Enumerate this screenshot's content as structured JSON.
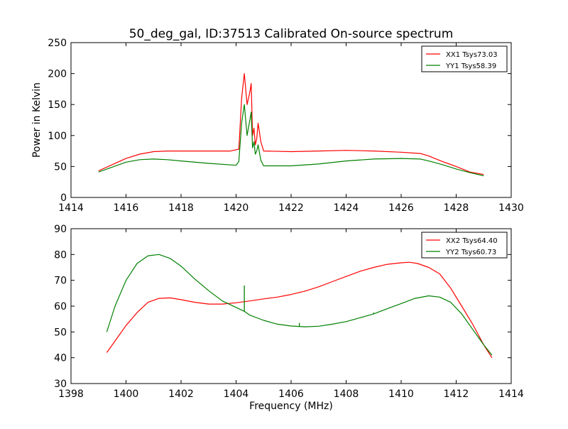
{
  "figure": {
    "title": "50_deg_gal, ID:37513 Calibrated On-source spectrum",
    "ylabel": "Power in Kelvin",
    "xlabel": "Frequency (MHz)"
  },
  "chart_data": [
    {
      "type": "line",
      "title": "50_deg_gal, ID:37513 Calibrated On-source spectrum",
      "ylabel": "Power in Kelvin",
      "xlabel": "",
      "xlim": [
        1414,
        1430
      ],
      "ylim": [
        0,
        250
      ],
      "xticks": [
        1414,
        1416,
        1418,
        1420,
        1422,
        1424,
        1426,
        1428,
        1430
      ],
      "yticks": [
        0,
        50,
        100,
        150,
        200,
        250
      ],
      "grid": false,
      "legend_position": "top-right",
      "series": [
        {
          "name": "XX1 Tsys73.03",
          "color": "#ff0000",
          "x": [
            1415.0,
            1415.5,
            1416.0,
            1416.5,
            1417.0,
            1417.5,
            1418.0,
            1419.0,
            1419.8,
            1420.1,
            1420.2,
            1420.3,
            1420.4,
            1420.5,
            1420.55,
            1420.6,
            1420.65,
            1420.7,
            1420.75,
            1420.8,
            1420.9,
            1421.0,
            1422.0,
            1423.0,
            1424.0,
            1425.0,
            1426.0,
            1426.7,
            1427.0,
            1427.5,
            1428.0,
            1428.5,
            1429.0
          ],
          "y": [
            43,
            53,
            63,
            70,
            74,
            75,
            75,
            75,
            75,
            78,
            160,
            200,
            150,
            170,
            184,
            100,
            112,
            85,
            95,
            120,
            90,
            75,
            74,
            75,
            76,
            75,
            73,
            71,
            67,
            58,
            50,
            41,
            37
          ]
        },
        {
          "name": "YY1 Tsys58.39",
          "color": "#008000",
          "x": [
            1415.0,
            1415.5,
            1416.0,
            1416.5,
            1417.0,
            1417.5,
            1418.0,
            1419.0,
            1420.0,
            1420.1,
            1420.2,
            1420.3,
            1420.4,
            1420.5,
            1420.55,
            1420.6,
            1420.65,
            1420.7,
            1420.75,
            1420.8,
            1420.9,
            1421.0,
            1422.0,
            1423.0,
            1424.0,
            1425.0,
            1426.0,
            1426.7,
            1427.0,
            1427.5,
            1428.0,
            1428.5,
            1429.0
          ],
          "y": [
            41,
            49,
            57,
            61,
            62,
            61,
            59,
            55,
            52,
            58,
            120,
            150,
            100,
            125,
            138,
            80,
            90,
            70,
            75,
            85,
            60,
            51,
            51,
            54,
            59,
            62,
            63,
            62,
            59,
            53,
            46,
            40,
            35
          ]
        }
      ]
    },
    {
      "type": "line",
      "title": "",
      "ylabel": "",
      "xlabel": "Frequency (MHz)",
      "xlim": [
        1398,
        1414
      ],
      "ylim": [
        30,
        90
      ],
      "xticks": [
        1398,
        1400,
        1402,
        1404,
        1406,
        1408,
        1410,
        1412,
        1414
      ],
      "yticks": [
        30,
        40,
        50,
        60,
        70,
        80,
        90
      ],
      "grid": false,
      "legend_position": "top-right",
      "series": [
        {
          "name": "XX2 Tsys64.40",
          "color": "#ff0000",
          "x": [
            1399.3,
            1399.6,
            1400.0,
            1400.4,
            1400.8,
            1401.2,
            1401.6,
            1402.0,
            1402.5,
            1403.0,
            1403.5,
            1404.0,
            1404.5,
            1405.0,
            1405.5,
            1406.0,
            1406.5,
            1407.0,
            1407.5,
            1408.0,
            1408.5,
            1409.0,
            1409.5,
            1410.0,
            1410.3,
            1410.6,
            1411.0,
            1411.4,
            1411.8,
            1412.2,
            1412.6,
            1413.0,
            1413.3
          ],
          "y": [
            42,
            46.5,
            52.5,
            57.5,
            61.5,
            63,
            63.2,
            62.5,
            61.5,
            60.8,
            60.8,
            61.3,
            62,
            62.8,
            63.5,
            64.5,
            65.8,
            67.5,
            69.5,
            71.5,
            73.5,
            75,
            76.2,
            76.8,
            77,
            76.5,
            75,
            72.5,
            67,
            60,
            53,
            45,
            40
          ]
        },
        {
          "name": "YY2 Tsys60.73",
          "color": "#008000",
          "x": [
            1399.3,
            1399.6,
            1400.0,
            1400.4,
            1400.8,
            1401.2,
            1401.6,
            1402.0,
            1402.5,
            1403.0,
            1403.5,
            1404.0,
            1404.3,
            1404.5,
            1405.0,
            1405.5,
            1406.0,
            1406.5,
            1407.0,
            1407.5,
            1408.0,
            1408.5,
            1409.0,
            1409.5,
            1410.0,
            1410.5,
            1411.0,
            1411.4,
            1411.8,
            1412.2,
            1412.6,
            1413.0,
            1413.3
          ],
          "y": [
            50,
            60,
            70,
            76.5,
            79.5,
            80,
            78.5,
            75.5,
            70.5,
            66,
            62,
            59.5,
            58,
            56.5,
            54.5,
            53,
            52.3,
            52,
            52.2,
            53,
            54,
            55.5,
            57,
            59,
            61,
            63,
            64,
            63.5,
            61.5,
            57,
            51,
            45,
            41
          ]
        }
      ],
      "spikes": [
        {
          "series": 1,
          "x": 1404.3,
          "y": 68
        },
        {
          "series": 1,
          "x": 1406.3,
          "y": 53.5
        },
        {
          "series": 1,
          "x": 1409.0,
          "y": 57.5
        },
        {
          "series": 0,
          "x": 1406.3,
          "y": 65.5
        }
      ]
    }
  ]
}
